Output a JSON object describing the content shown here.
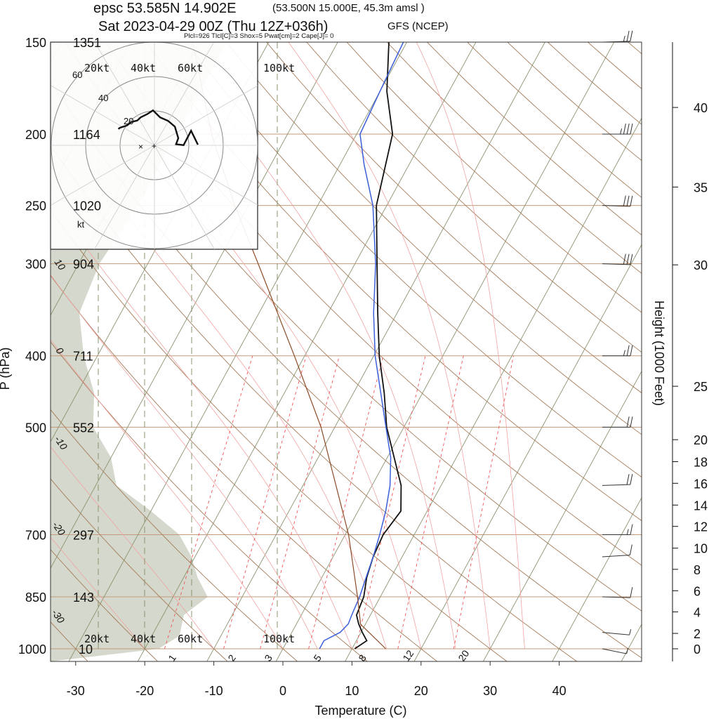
{
  "header": {
    "line1_main": "epsc 53.585N 14.902E",
    "line1_sub": "(53.500N 15.000E,  45.3m amsl )",
    "line2_main": "Sat 2023-04-29 00Z (Thu 12Z+036h)",
    "line2_sub": "GFS (NCEP)",
    "indices": "Plcl=926 Tlcl[C]=3 Shox=5 Pwat[cm]=2 Cape[J]= 0"
  },
  "axes": {
    "ylabel": "P (hPa)",
    "xlabel": "Temperature (C)",
    "y2label": "Height (1000 Feet)"
  },
  "hodograph": {
    "ring_labels": [
      "20kt",
      "40kt",
      "60kt",
      "100kt"
    ],
    "radial_labels": [
      "60",
      "40",
      "20"
    ],
    "unit": "kt"
  },
  "colors": {
    "isobar": "#c49a7a",
    "dry_adiabat": "#a67c5a",
    "moist_adiabat": "#f2a3a3",
    "mixing_ratio": "#ee5555",
    "isotherm": "#8a9470",
    "temperature": "#111111",
    "dewpoint": "#3b5fd9",
    "parcel": "#8b4a26",
    "standard_atmosphere": "#d5d8cc"
  },
  "chart_data": {
    "type": "line",
    "title": "epsc 53.585N 14.902E",
    "xlabel": "Temperature (C)",
    "ylabel": "P (hPa)",
    "y2label": "Height (1000 Feet)",
    "xlim": [
      -34,
      53
    ],
    "ylim": [
      1000,
      150
    ],
    "y_scale": "log",
    "x_ticks": [
      -30,
      -20,
      -10,
      0,
      10,
      20,
      30,
      40
    ],
    "pressure_ticks": [
      {
        "p": 150,
        "height_m": "1351"
      },
      {
        "p": 200,
        "height_m": "1164"
      },
      {
        "p": 250,
        "height_m": "1020"
      },
      {
        "p": 300,
        "height_m": "904"
      },
      {
        "p": 400,
        "height_m": "711"
      },
      {
        "p": 500,
        "height_m": "552"
      },
      {
        "p": 700,
        "height_m": "297"
      },
      {
        "p": 850,
        "height_m": "143"
      },
      {
        "p": 1000,
        "height_m": "10"
      }
    ],
    "height_ticks": [
      {
        "label": "0",
        "p": 1000
      },
      {
        "label": "2",
        "p": 953
      },
      {
        "label": "4",
        "p": 891
      },
      {
        "label": "6",
        "p": 834
      },
      {
        "label": "8",
        "p": 780
      },
      {
        "label": "10",
        "p": 730
      },
      {
        "label": "12",
        "p": 682
      },
      {
        "label": "14",
        "p": 638
      },
      {
        "label": "16",
        "p": 596
      },
      {
        "label": "18",
        "p": 557
      },
      {
        "label": "20",
        "p": 520
      },
      {
        "label": "25",
        "p": 440
      },
      {
        "label": "30",
        "p": 301
      },
      {
        "label": "35",
        "p": 236
      },
      {
        "label": "40",
        "p": 184
      }
    ],
    "isotherm_labels": [
      "-30",
      "-20",
      "-10",
      "0",
      "10",
      "20",
      "30"
    ],
    "mixing_ratio_labels": [
      "1",
      "2",
      "3",
      "5",
      "8",
      "12",
      "20"
    ],
    "dry_adiabat_labels": [
      "10",
      "0",
      "-10",
      "-20",
      "-30"
    ],
    "series": [
      {
        "name": "Temperature",
        "points": [
          [
            1000,
            10.4
          ],
          [
            975,
            11.5
          ],
          [
            950,
            10.2
          ],
          [
            925,
            9.0
          ],
          [
            900,
            8.0
          ],
          [
            850,
            7.6
          ],
          [
            800,
            6.5
          ],
          [
            750,
            5.8
          ],
          [
            700,
            5.5
          ],
          [
            650,
            6.2
          ],
          [
            600,
            4.2
          ],
          [
            550,
            1.0
          ],
          [
            500,
            -2.5
          ],
          [
            450,
            -5.5
          ],
          [
            400,
            -9.2
          ],
          [
            350,
            -12.8
          ],
          [
            300,
            -16.8
          ],
          [
            250,
            -21.5
          ],
          [
            200,
            -24.8
          ],
          [
            175,
            -29.0
          ],
          [
            150,
            -32.6
          ]
        ]
      },
      {
        "name": "Dewpoint",
        "points": [
          [
            1000,
            5.3
          ],
          [
            975,
            5.3
          ],
          [
            950,
            7.0
          ],
          [
            925,
            7.5
          ],
          [
            900,
            7.3
          ],
          [
            850,
            7.0
          ],
          [
            800,
            6.4
          ],
          [
            750,
            5.8
          ],
          [
            700,
            5.0
          ],
          [
            650,
            4.0
          ],
          [
            600,
            2.6
          ],
          [
            550,
            0.5
          ],
          [
            500,
            -2.6
          ],
          [
            450,
            -6.0
          ],
          [
            400,
            -9.8
          ],
          [
            350,
            -13.4
          ],
          [
            300,
            -17.0
          ],
          [
            250,
            -22.0
          ],
          [
            220,
            -26.5
          ],
          [
            200,
            -29.5
          ],
          [
            175,
            -30.0
          ],
          [
            150,
            -30.5
          ]
        ]
      },
      {
        "name": "Parcel",
        "points": [
          [
            1000,
            14.9
          ],
          [
            926,
            9.3
          ],
          [
            850,
            6.7
          ],
          [
            700,
            0.5
          ],
          [
            500,
            -12.0
          ],
          [
            400,
            -21.5
          ],
          [
            300,
            -34.0
          ],
          [
            250,
            -42.0
          ],
          [
            200,
            -51.0
          ],
          [
            150,
            -61.0
          ]
        ]
      }
    ],
    "wind_barbs": [
      {
        "p": 1000,
        "dir_deg": 300,
        "speed_kt": 5
      },
      {
        "p": 950,
        "dir_deg": 285,
        "speed_kt": 5
      },
      {
        "p": 850,
        "dir_deg": 275,
        "speed_kt": 10
      },
      {
        "p": 750,
        "dir_deg": 260,
        "speed_kt": 10
      },
      {
        "p": 700,
        "dir_deg": 270,
        "speed_kt": 15
      },
      {
        "p": 600,
        "dir_deg": 265,
        "speed_kt": 20
      },
      {
        "p": 500,
        "dir_deg": 270,
        "speed_kt": 20
      },
      {
        "p": 400,
        "dir_deg": 270,
        "speed_kt": 25
      },
      {
        "p": 300,
        "dir_deg": 275,
        "speed_kt": 30
      },
      {
        "p": 250,
        "dir_deg": 275,
        "speed_kt": 30
      },
      {
        "p": 200,
        "dir_deg": 270,
        "speed_kt": 35
      },
      {
        "p": 150,
        "dir_deg": 265,
        "speed_kt": 25
      }
    ],
    "hodograph": [
      [
        -6.3,
        2.0
      ],
      [
        -5.5,
        1.5
      ],
      [
        -2.5,
        0.5
      ],
      [
        -0.6,
        -1.0
      ],
      [
        2.0,
        -1.6
      ],
      [
        3.5,
        -3.0
      ],
      [
        6.4,
        -4.4
      ],
      [
        8.9,
        -6.0
      ],
      [
        12.0,
        -3.0
      ],
      [
        15.5,
        -1.5
      ],
      [
        18.5,
        1.0
      ],
      [
        20.0,
        6.0
      ],
      [
        19.0,
        8.6
      ],
      [
        22.3,
        9.0
      ],
      [
        25.6,
        2.8
      ],
      [
        28.6,
        8.8
      ]
    ]
  }
}
